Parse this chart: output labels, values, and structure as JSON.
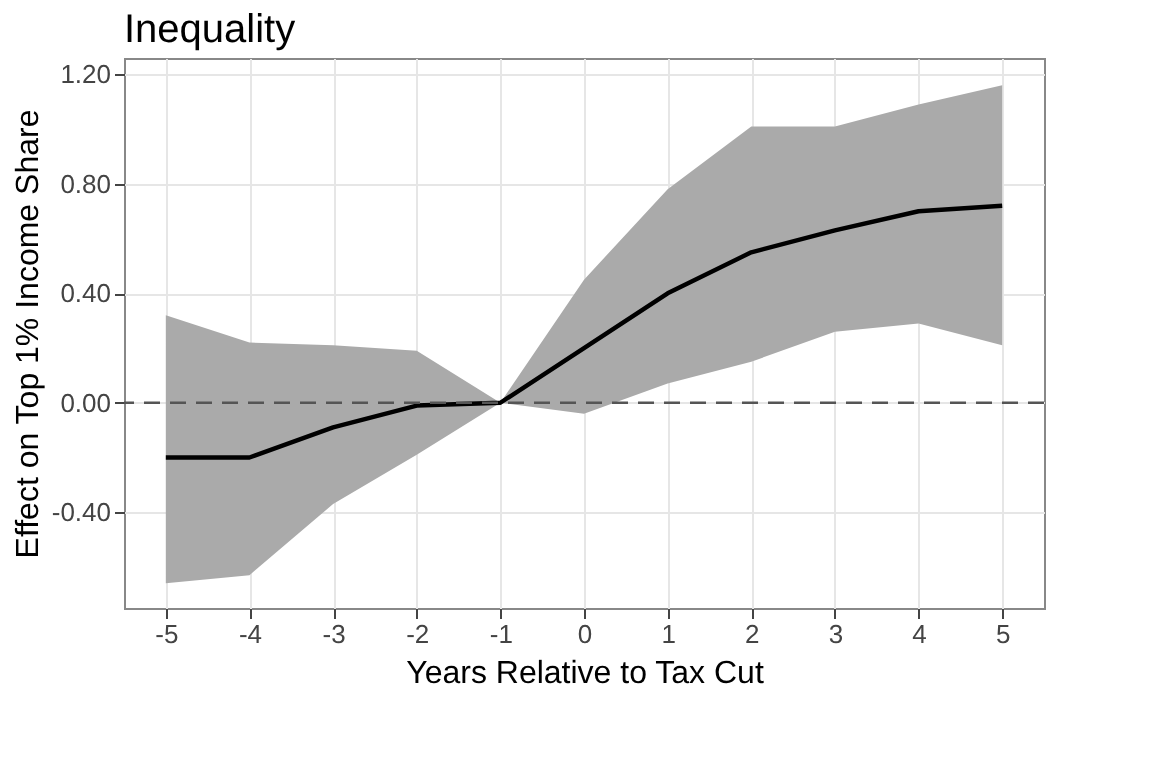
{
  "chart_data": {
    "type": "line",
    "title": "Inequality",
    "xlabel": "Years Relative to Tax Cut",
    "ylabel": "Effect on Top 1% Income Share",
    "x": [
      -5,
      -4,
      -3,
      -2,
      -1,
      0,
      1,
      2,
      3,
      4,
      5
    ],
    "series": [
      {
        "color": "#000000",
        "values": [
          -0.2,
          -0.2,
          -0.09,
          -0.01,
          0.0,
          0.2,
          0.4,
          0.55,
          0.63,
          0.7,
          0.72
        ],
        "lower": [
          -0.66,
          -0.63,
          -0.37,
          -0.19,
          0.0,
          -0.04,
          0.07,
          0.15,
          0.26,
          0.29,
          0.21
        ],
        "upper": [
          0.32,
          0.22,
          0.21,
          0.19,
          0.0,
          0.45,
          0.78,
          1.01,
          1.01,
          1.09,
          1.16
        ]
      }
    ],
    "xlim": [
      -5.5,
      5.5
    ],
    "xticks": [
      -5,
      -4,
      -3,
      -2,
      -1,
      0,
      1,
      2,
      3,
      4,
      5
    ],
    "ylim": [
      -0.75,
      1.26
    ],
    "yticks": [
      {
        "value": -0.4,
        "label": "-0.40"
      },
      {
        "value": 0,
        "label": "0.00"
      },
      {
        "value": 0.4,
        "label": "0.40"
      },
      {
        "value": 0.8,
        "label": "0.80"
      },
      {
        "value": 1.2,
        "label": "1.20"
      }
    ],
    "ref_lines": [
      {
        "axis": "y",
        "value": 0,
        "color": "#555555",
        "line_style": "dashed"
      }
    ],
    "grid": true,
    "marker": "none",
    "line_style": "solid"
  }
}
